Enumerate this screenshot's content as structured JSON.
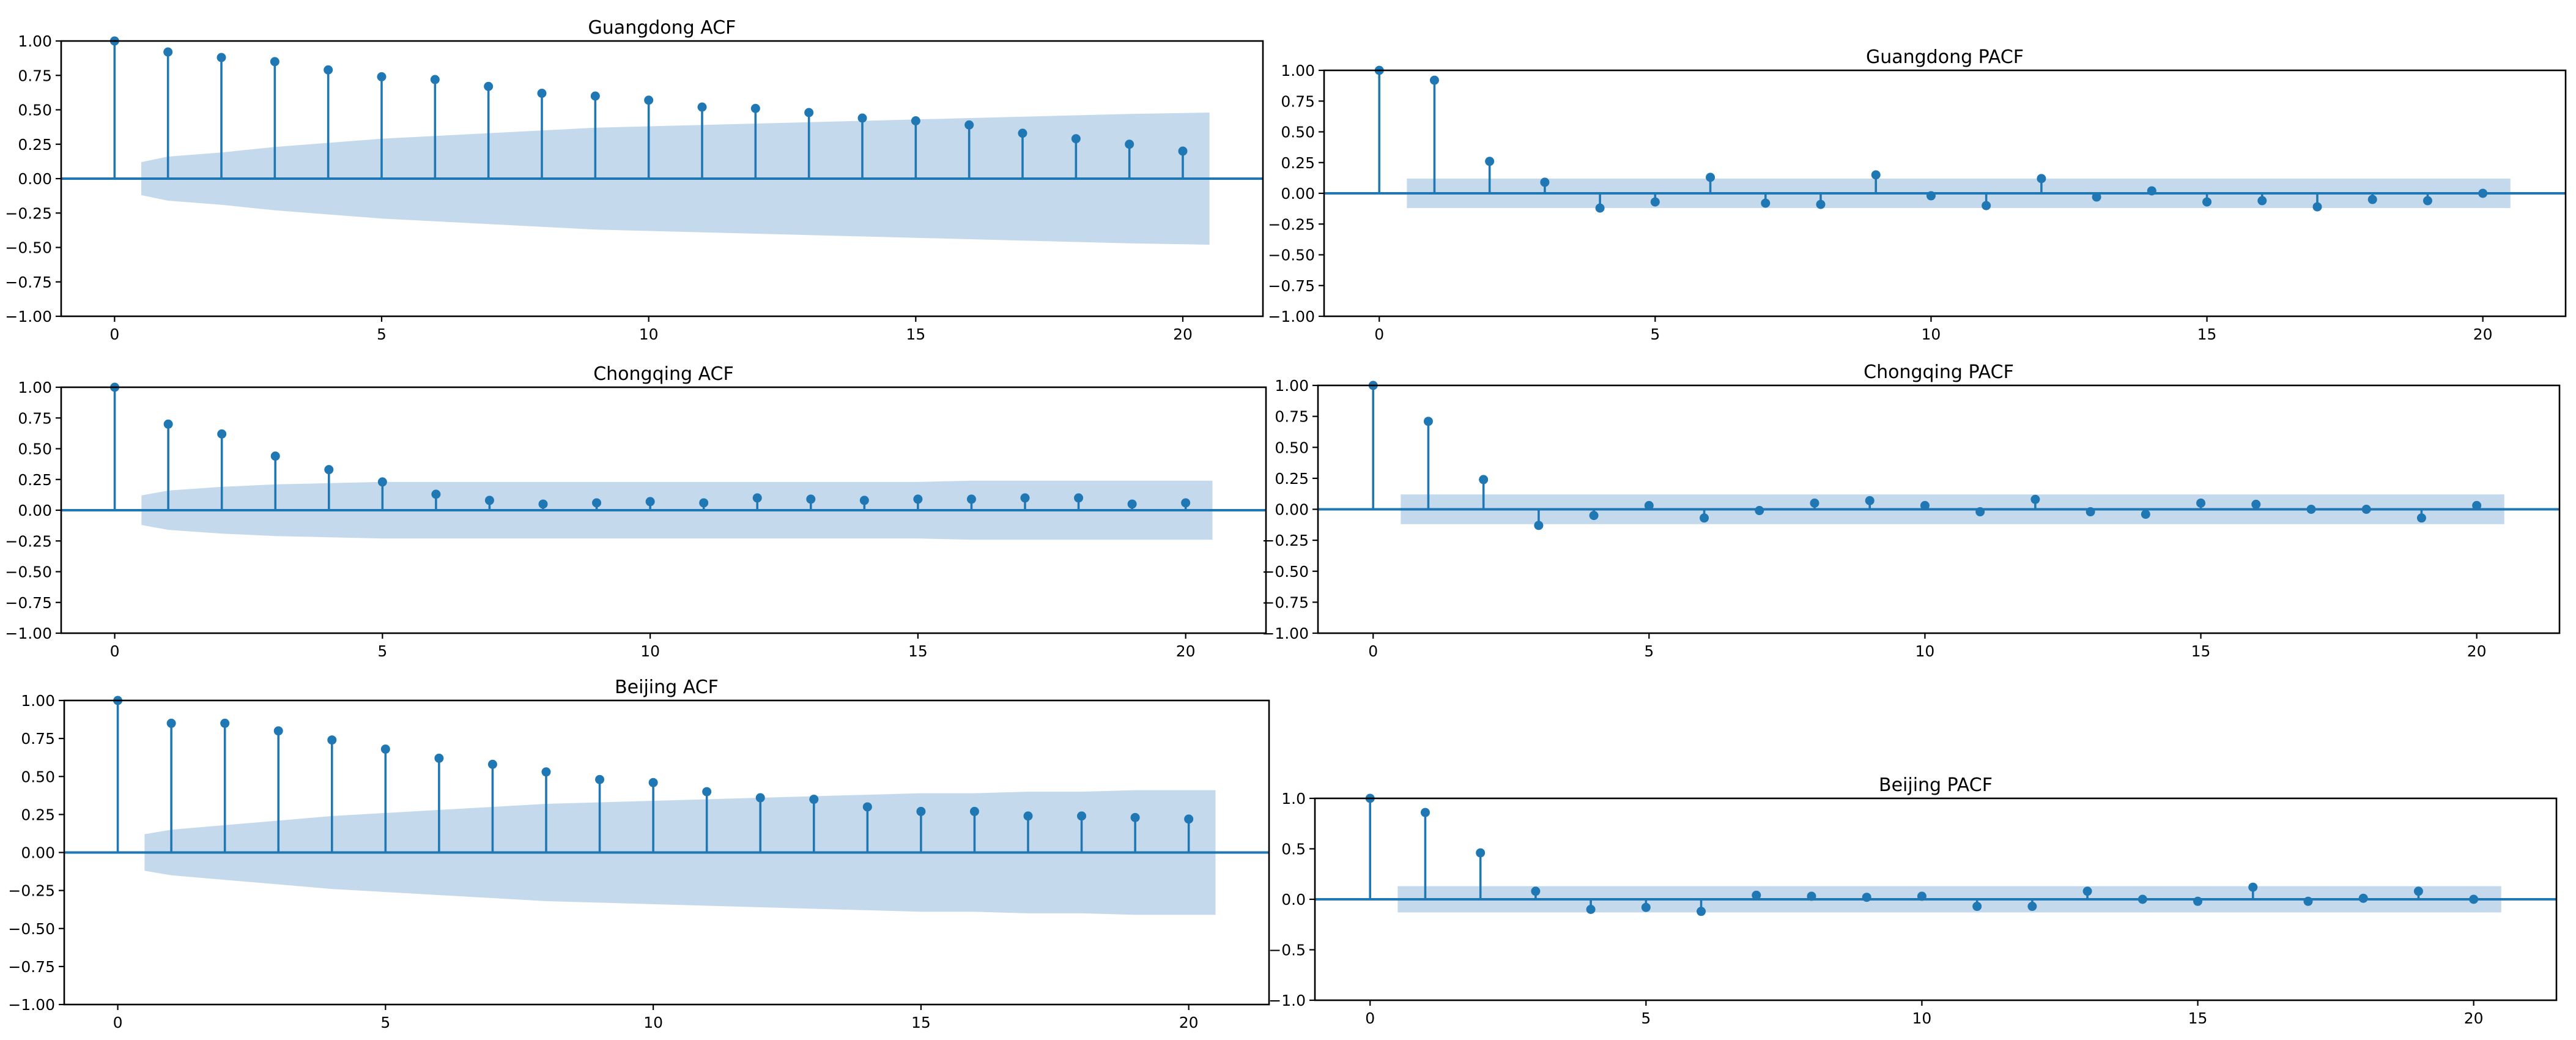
{
  "colors": {
    "series": "#1f77b4",
    "band": "#c5d9ec",
    "axes": "#000000"
  },
  "chart_data": [
    {
      "id": "guangdong-acf",
      "kind": "acf",
      "type": "stem",
      "title": "Guangdong ACF",
      "xlim": [
        -1,
        21.5
      ],
      "ylim": [
        -1,
        1
      ],
      "xticks": [
        0,
        5,
        10,
        15,
        20
      ],
      "xtick_labels": [
        "0",
        "5",
        "10",
        "15",
        "20"
      ],
      "yticks": [
        -1,
        -0.75,
        -0.5,
        -0.25,
        0,
        0.25,
        0.5,
        0.75,
        1
      ],
      "ytick_labels": [
        "−1.00",
        "−0.75",
        "−0.50",
        "−0.25",
        "0.00",
        "0.25",
        "0.50",
        "0.75",
        "1.00"
      ],
      "lags": [
        0,
        1,
        2,
        3,
        4,
        5,
        6,
        7,
        8,
        9,
        10,
        11,
        12,
        13,
        14,
        15,
        16,
        17,
        18,
        19,
        20
      ],
      "values": [
        1.0,
        0.92,
        0.88,
        0.85,
        0.79,
        0.74,
        0.72,
        0.67,
        0.62,
        0.6,
        0.57,
        0.52,
        0.51,
        0.48,
        0.44,
        0.42,
        0.39,
        0.33,
        0.29,
        0.25,
        0.2
      ],
      "conf_band_upper": [
        0.12,
        0.16,
        0.19,
        0.23,
        0.26,
        0.29,
        0.31,
        0.33,
        0.35,
        0.37,
        0.38,
        0.39,
        0.4,
        0.41,
        0.42,
        0.43,
        0.44,
        0.45,
        0.46,
        0.47,
        0.48
      ]
    },
    {
      "id": "guangdong-pacf",
      "kind": "pacf",
      "type": "stem",
      "title": "Guangdong PACF",
      "xlim": [
        -1,
        21.5
      ],
      "ylim": [
        -1,
        1
      ],
      "xticks": [
        0,
        5,
        10,
        15,
        20
      ],
      "xtick_labels": [
        "0",
        "5",
        "10",
        "15",
        "20"
      ],
      "yticks": [
        -1,
        -0.75,
        -0.5,
        -0.25,
        0,
        0.25,
        0.5,
        0.75,
        1
      ],
      "ytick_labels": [
        "−1.00",
        "−0.75",
        "−0.50",
        "−0.25",
        "0.00",
        "0.25",
        "0.50",
        "0.75",
        "1.00"
      ],
      "lags": [
        0,
        1,
        2,
        3,
        4,
        5,
        6,
        7,
        8,
        9,
        10,
        11,
        12,
        13,
        14,
        15,
        16,
        17,
        18,
        19,
        20
      ],
      "values": [
        1.0,
        0.92,
        0.26,
        0.09,
        -0.12,
        -0.07,
        0.13,
        -0.08,
        -0.09,
        0.15,
        -0.02,
        -0.1,
        0.12,
        -0.03,
        0.02,
        -0.07,
        -0.06,
        -0.11,
        -0.05,
        -0.06,
        0.0
      ],
      "conf_band": 0.12
    },
    {
      "id": "chongqing-acf",
      "kind": "acf",
      "type": "stem",
      "title": "Chongqing ACF",
      "xlim": [
        -1,
        21.5
      ],
      "ylim": [
        -1,
        1
      ],
      "xticks": [
        0,
        5,
        10,
        15,
        20
      ],
      "xtick_labels": [
        "0",
        "5",
        "10",
        "15",
        "20"
      ],
      "yticks": [
        -1,
        -0.75,
        -0.5,
        -0.25,
        0,
        0.25,
        0.5,
        0.75,
        1
      ],
      "ytick_labels": [
        "−1.00",
        "−0.75",
        "−0.50",
        "−0.25",
        "0.00",
        "0.25",
        "0.50",
        "0.75",
        "1.00"
      ],
      "lags": [
        0,
        1,
        2,
        3,
        4,
        5,
        6,
        7,
        8,
        9,
        10,
        11,
        12,
        13,
        14,
        15,
        16,
        17,
        18,
        19,
        20
      ],
      "values": [
        1.0,
        0.7,
        0.62,
        0.44,
        0.33,
        0.23,
        0.13,
        0.08,
        0.05,
        0.06,
        0.07,
        0.06,
        0.1,
        0.09,
        0.08,
        0.09,
        0.09,
        0.1,
        0.1,
        0.05,
        0.06
      ],
      "conf_band_upper": [
        0.12,
        0.16,
        0.19,
        0.21,
        0.22,
        0.23,
        0.23,
        0.23,
        0.23,
        0.23,
        0.23,
        0.23,
        0.23,
        0.23,
        0.23,
        0.23,
        0.24,
        0.24,
        0.24,
        0.24,
        0.24
      ]
    },
    {
      "id": "chongqing-pacf",
      "kind": "pacf",
      "type": "stem",
      "title": "Chongqing PACF",
      "xlim": [
        -1,
        21.5
      ],
      "ylim": [
        -1,
        1
      ],
      "xticks": [
        0,
        5,
        10,
        15,
        20
      ],
      "xtick_labels": [
        "0",
        "5",
        "10",
        "15",
        "20"
      ],
      "yticks": [
        -1,
        -0.75,
        -0.5,
        -0.25,
        0,
        0.25,
        0.5,
        0.75,
        1
      ],
      "ytick_labels": [
        "−1.00",
        "−0.75",
        "−0.50",
        "−0.25",
        "0.00",
        "0.25",
        "0.50",
        "0.75",
        "1.00"
      ],
      "lags": [
        0,
        1,
        2,
        3,
        4,
        5,
        6,
        7,
        8,
        9,
        10,
        11,
        12,
        13,
        14,
        15,
        16,
        17,
        18,
        19,
        20
      ],
      "values": [
        1.0,
        0.71,
        0.24,
        -0.13,
        -0.05,
        0.03,
        -0.07,
        -0.01,
        0.05,
        0.07,
        0.03,
        -0.02,
        0.08,
        -0.02,
        -0.04,
        0.05,
        0.04,
        0.0,
        0.0,
        -0.07,
        0.03
      ],
      "conf_band": 0.12
    },
    {
      "id": "beijing-acf",
      "kind": "acf",
      "type": "stem",
      "title": "Beijing ACF",
      "xlim": [
        -1,
        21.5
      ],
      "ylim": [
        -1,
        1
      ],
      "xticks": [
        0,
        5,
        10,
        15,
        20
      ],
      "xtick_labels": [
        "0",
        "5",
        "10",
        "15",
        "20"
      ],
      "yticks": [
        -1,
        -0.75,
        -0.5,
        -0.25,
        0,
        0.25,
        0.5,
        0.75,
        1
      ],
      "ytick_labels": [
        "−1.00",
        "−0.75",
        "−0.50",
        "−0.25",
        "0.00",
        "0.25",
        "0.50",
        "0.75",
        "1.00"
      ],
      "lags": [
        0,
        1,
        2,
        3,
        4,
        5,
        6,
        7,
        8,
        9,
        10,
        11,
        12,
        13,
        14,
        15,
        16,
        17,
        18,
        19,
        20
      ],
      "values": [
        1.0,
        0.85,
        0.85,
        0.8,
        0.74,
        0.68,
        0.62,
        0.58,
        0.53,
        0.48,
        0.46,
        0.4,
        0.36,
        0.35,
        0.3,
        0.27,
        0.27,
        0.24,
        0.24,
        0.23,
        0.22
      ],
      "conf_band_upper": [
        0.12,
        0.15,
        0.18,
        0.21,
        0.24,
        0.26,
        0.28,
        0.3,
        0.32,
        0.33,
        0.34,
        0.35,
        0.36,
        0.37,
        0.38,
        0.39,
        0.39,
        0.4,
        0.4,
        0.41,
        0.41
      ]
    },
    {
      "id": "beijing-pacf",
      "kind": "pacf",
      "type": "stem",
      "title": "Beijing PACF",
      "xlim": [
        -1,
        21.5
      ],
      "ylim": [
        -1,
        1
      ],
      "xticks": [
        0,
        5,
        10,
        15,
        20
      ],
      "xtick_labels": [
        "0",
        "5",
        "10",
        "15",
        "20"
      ],
      "yticks": [
        -1,
        -0.5,
        0,
        0.5,
        1
      ],
      "ytick_labels": [
        "−1.0",
        "−0.5",
        "0.0",
        "0.5",
        "1.0"
      ],
      "lags": [
        0,
        1,
        2,
        3,
        4,
        5,
        6,
        7,
        8,
        9,
        10,
        11,
        12,
        13,
        14,
        15,
        16,
        17,
        18,
        19,
        20
      ],
      "values": [
        1.0,
        0.86,
        0.46,
        0.08,
        -0.1,
        -0.08,
        -0.12,
        0.04,
        0.03,
        0.02,
        0.03,
        -0.07,
        -0.07,
        0.08,
        0.0,
        -0.02,
        0.12,
        -0.02,
        0.01,
        0.08,
        0.0
      ],
      "conf_band": 0.13
    }
  ]
}
